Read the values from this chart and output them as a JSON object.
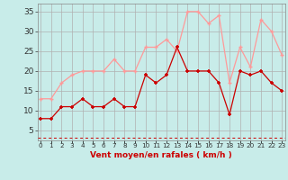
{
  "x": [
    0,
    1,
    2,
    3,
    4,
    5,
    6,
    7,
    8,
    9,
    10,
    11,
    12,
    13,
    14,
    15,
    16,
    17,
    18,
    19,
    20,
    21,
    22,
    23
  ],
  "rafales": [
    13,
    13,
    17,
    19,
    20,
    20,
    20,
    23,
    20,
    20,
    26,
    26,
    28,
    25,
    35,
    35,
    32,
    34,
    17,
    26,
    21,
    33,
    30,
    24
  ],
  "moyen": [
    8,
    8,
    11,
    11,
    13,
    11,
    11,
    13,
    11,
    11,
    19,
    17,
    19,
    26,
    20,
    20,
    20,
    17,
    9,
    20,
    19,
    20,
    17,
    15
  ],
  "bg_color": "#c8ece9",
  "grid_color": "#b0b0b0",
  "line_color_moyen": "#cc0000",
  "line_color_rafales": "#ff9999",
  "dashed_color": "#cc0000",
  "xlabel": "Vent moyen/en rafales ( km/h )",
  "xlabel_color": "#cc0000",
  "yticks": [
    5,
    10,
    15,
    20,
    25,
    30,
    35
  ],
  "ylim": [
    2.5,
    37
  ],
  "xlim": [
    -0.3,
    23.3
  ],
  "dashed_y": 3.2
}
